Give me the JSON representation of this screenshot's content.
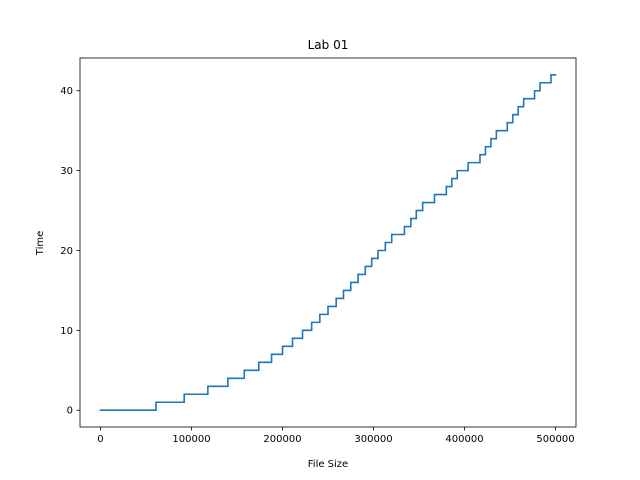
{
  "chart_data": {
    "type": "line",
    "title": "Lab 01",
    "xlabel": "File Size",
    "ylabel": "Time",
    "xlim": [
      -22500,
      522500
    ],
    "ylim": [
      -2.1,
      44.1
    ],
    "xticks": [
      0,
      100000,
      200000,
      300000,
      400000,
      500000
    ],
    "xtick_labels": [
      "0",
      "100000",
      "200000",
      "300000",
      "400000",
      "500000"
    ],
    "yticks": [
      0,
      10,
      20,
      30,
      40
    ],
    "ytick_labels": [
      "0",
      "10",
      "20",
      "30",
      "40"
    ],
    "grid": false,
    "legend": "none",
    "series": [
      {
        "color": "#1f77b4",
        "step": "post",
        "x": [
          0,
          61000,
          92000,
          118000,
          140000,
          158000,
          174000,
          188000,
          200000,
          211000,
          222000,
          232000,
          241000,
          250000,
          259000,
          267000,
          275000,
          283000,
          291000,
          298000,
          305000,
          313000,
          320000,
          327000,
          334000,
          341000,
          347000,
          354000,
          360000,
          367000,
          373000,
          380000,
          386000,
          392000,
          398000,
          404000,
          410000,
          417000,
          423000,
          429000,
          435000,
          441000,
          447000,
          453000,
          459000,
          465000,
          471000,
          477000,
          483000,
          489000,
          495000,
          500000
        ],
        "y": [
          0,
          1,
          2,
          3,
          4,
          5,
          6,
          7,
          8,
          9,
          10,
          11,
          12,
          13,
          14,
          15,
          16,
          17,
          18,
          19,
          20,
          21,
          22,
          22,
          23,
          24,
          25,
          26,
          26,
          27,
          27,
          28,
          29,
          30,
          30,
          31,
          31,
          32,
          33,
          34,
          35,
          35,
          36,
          37,
          38,
          39,
          39,
          40,
          41,
          41,
          42,
          42
        ]
      }
    ]
  }
}
